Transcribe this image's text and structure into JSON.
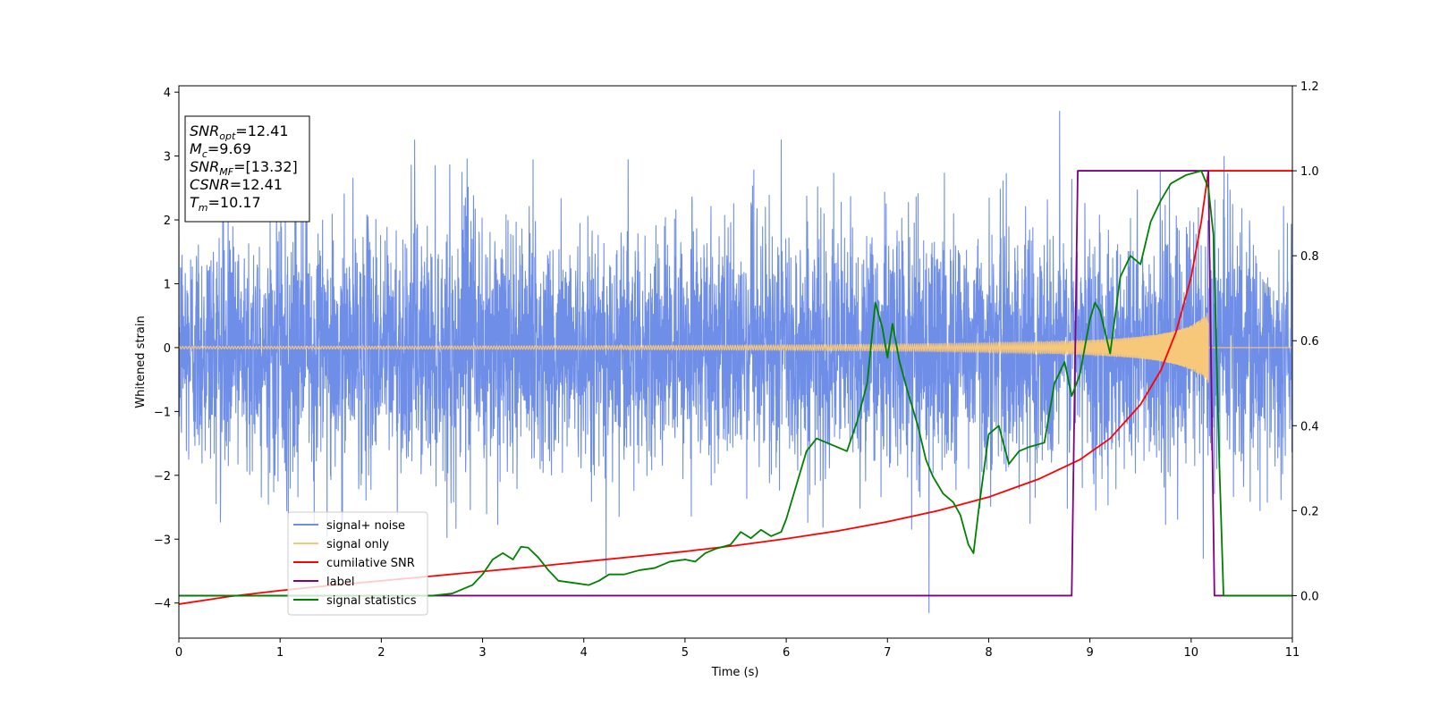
{
  "chart_data": {
    "type": "line",
    "xlabel": "Time (s)",
    "ylabel_left": "Whitened strain",
    "ylabel_right": "",
    "xlim": [
      0,
      11
    ],
    "ylim_left": [
      -4.55,
      4.1
    ],
    "ylim_right": [
      -0.1,
      1.2
    ],
    "x_ticks": [
      0,
      1,
      2,
      3,
      4,
      5,
      6,
      7,
      8,
      9,
      10,
      11
    ],
    "x_tick_labels": [
      "0",
      "1",
      "2",
      "3",
      "4",
      "5",
      "6",
      "7",
      "8",
      "9",
      "10",
      "11"
    ],
    "y_left_ticks": [
      -4,
      -3,
      -2,
      -1,
      0,
      1,
      2,
      3,
      4
    ],
    "y_left_tick_labels": [
      "−4",
      "−3",
      "−2",
      "−1",
      "0",
      "1",
      "2",
      "3",
      "4"
    ],
    "y_right_ticks": [
      0.0,
      0.2,
      0.4,
      0.6,
      0.8,
      1.0,
      1.2
    ],
    "y_right_tick_labels": [
      "0.0",
      "0.2",
      "0.4",
      "0.6",
      "0.8",
      "1.0",
      "1.2"
    ],
    "grid": false,
    "legend_placement": "lower-left",
    "annotation": {
      "lines": [
        {
          "var": "SNR",
          "sub": "opt",
          "text": "=12.41"
        },
        {
          "var": "M",
          "sub": "c",
          "text": "=9.69"
        },
        {
          "var": "SNR",
          "sub": "MF",
          "text": "=[13.32]"
        },
        {
          "var": "CSNR",
          "sub": "",
          "text": "=12.41"
        },
        {
          "var": "T",
          "sub": "m",
          "text": "=10.17"
        }
      ]
    },
    "series": [
      {
        "name": "signal+ noise",
        "axis": "left",
        "color": "#6f8ee8",
        "kind": "noise",
        "std": 0.95,
        "x_start": 0,
        "x_end": 11,
        "extremes": [
          {
            "x": 8.7,
            "y": 3.7
          },
          {
            "x": 7.41,
            "y": -4.15
          },
          {
            "x": 2.33,
            "y": 3.25
          },
          {
            "x": 5.95,
            "y": 3.25
          },
          {
            "x": 4.22,
            "y": -3.55
          },
          {
            "x": 10.12,
            "y": -3.3
          }
        ]
      },
      {
        "name": "signal only",
        "axis": "left",
        "color": "#f7c77a",
        "kind": "chirp",
        "x_start": 0,
        "x_end": 10.17,
        "amplitude_start": 0.02,
        "amplitude_end": 0.9,
        "merger_time": 10.17
      },
      {
        "name": "cumilative SNR",
        "axis": "right",
        "color": "#ff0000",
        "kind": "curve",
        "points": [
          [
            0,
            -0.02
          ],
          [
            0.5,
            -0.002
          ],
          [
            1,
            0.012
          ],
          [
            1.5,
            0.024
          ],
          [
            2,
            0.035
          ],
          [
            2.5,
            0.046
          ],
          [
            3,
            0.057
          ],
          [
            3.5,
            0.068
          ],
          [
            4,
            0.08
          ],
          [
            4.5,
            0.092
          ],
          [
            5,
            0.104
          ],
          [
            5.5,
            0.118
          ],
          [
            6,
            0.134
          ],
          [
            6.5,
            0.152
          ],
          [
            7,
            0.174
          ],
          [
            7.5,
            0.2
          ],
          [
            8,
            0.232
          ],
          [
            8.5,
            0.275
          ],
          [
            8.9,
            0.32
          ],
          [
            9.2,
            0.37
          ],
          [
            9.5,
            0.45
          ],
          [
            9.7,
            0.53
          ],
          [
            9.85,
            0.62
          ],
          [
            10.0,
            0.75
          ],
          [
            10.1,
            0.88
          ],
          [
            10.17,
            1.0
          ],
          [
            11,
            1.0
          ]
        ]
      },
      {
        "name": "label",
        "axis": "right",
        "color": "#800080",
        "kind": "curve",
        "points": [
          [
            0,
            0.0
          ],
          [
            8.82,
            0.0
          ],
          [
            8.88,
            1.0
          ],
          [
            10.17,
            1.0
          ],
          [
            10.23,
            0.0
          ],
          [
            11,
            0.0
          ]
        ]
      },
      {
        "name": "signal statistics",
        "axis": "right",
        "color": "#008000",
        "kind": "curve",
        "points": [
          [
            0,
            0.0
          ],
          [
            2.5,
            0.0
          ],
          [
            2.7,
            0.005
          ],
          [
            2.9,
            0.025
          ],
          [
            3.0,
            0.05
          ],
          [
            3.1,
            0.085
          ],
          [
            3.2,
            0.1
          ],
          [
            3.3,
            0.085
          ],
          [
            3.38,
            0.115
          ],
          [
            3.45,
            0.113
          ],
          [
            3.55,
            0.09
          ],
          [
            3.65,
            0.06
          ],
          [
            3.75,
            0.035
          ],
          [
            3.9,
            0.03
          ],
          [
            4.05,
            0.025
          ],
          [
            4.15,
            0.035
          ],
          [
            4.25,
            0.05
          ],
          [
            4.4,
            0.05
          ],
          [
            4.55,
            0.06
          ],
          [
            4.7,
            0.065
          ],
          [
            4.85,
            0.08
          ],
          [
            5.0,
            0.085
          ],
          [
            5.1,
            0.08
          ],
          [
            5.2,
            0.1
          ],
          [
            5.3,
            0.11
          ],
          [
            5.45,
            0.12
          ],
          [
            5.55,
            0.15
          ],
          [
            5.65,
            0.135
          ],
          [
            5.75,
            0.155
          ],
          [
            5.85,
            0.14
          ],
          [
            5.95,
            0.15
          ],
          [
            6.0,
            0.18
          ],
          [
            6.1,
            0.26
          ],
          [
            6.2,
            0.34
          ],
          [
            6.3,
            0.37
          ],
          [
            6.4,
            0.36
          ],
          [
            6.5,
            0.35
          ],
          [
            6.6,
            0.34
          ],
          [
            6.7,
            0.41
          ],
          [
            6.8,
            0.5
          ],
          [
            6.88,
            0.69
          ],
          [
            6.95,
            0.63
          ],
          [
            7.0,
            0.56
          ],
          [
            7.05,
            0.64
          ],
          [
            7.12,
            0.55
          ],
          [
            7.2,
            0.48
          ],
          [
            7.3,
            0.4
          ],
          [
            7.38,
            0.32
          ],
          [
            7.45,
            0.28
          ],
          [
            7.55,
            0.24
          ],
          [
            7.65,
            0.22
          ],
          [
            7.72,
            0.19
          ],
          [
            7.8,
            0.12
          ],
          [
            7.85,
            0.1
          ],
          [
            7.9,
            0.2
          ],
          [
            8.0,
            0.38
          ],
          [
            8.1,
            0.4
          ],
          [
            8.2,
            0.31
          ],
          [
            8.3,
            0.34
          ],
          [
            8.4,
            0.35
          ],
          [
            8.55,
            0.36
          ],
          [
            8.65,
            0.5
          ],
          [
            8.75,
            0.55
          ],
          [
            8.82,
            0.47
          ],
          [
            8.9,
            0.52
          ],
          [
            9.0,
            0.65
          ],
          [
            9.05,
            0.69
          ],
          [
            9.1,
            0.67
          ],
          [
            9.2,
            0.57
          ],
          [
            9.3,
            0.75
          ],
          [
            9.4,
            0.8
          ],
          [
            9.5,
            0.78
          ],
          [
            9.6,
            0.88
          ],
          [
            9.7,
            0.93
          ],
          [
            9.8,
            0.97
          ],
          [
            9.95,
            0.99
          ],
          [
            10.1,
            1.0
          ],
          [
            10.17,
            0.96
          ],
          [
            10.22,
            0.85
          ],
          [
            10.28,
            0.3
          ],
          [
            10.32,
            0.0
          ],
          [
            11,
            0.0
          ]
        ]
      }
    ]
  }
}
